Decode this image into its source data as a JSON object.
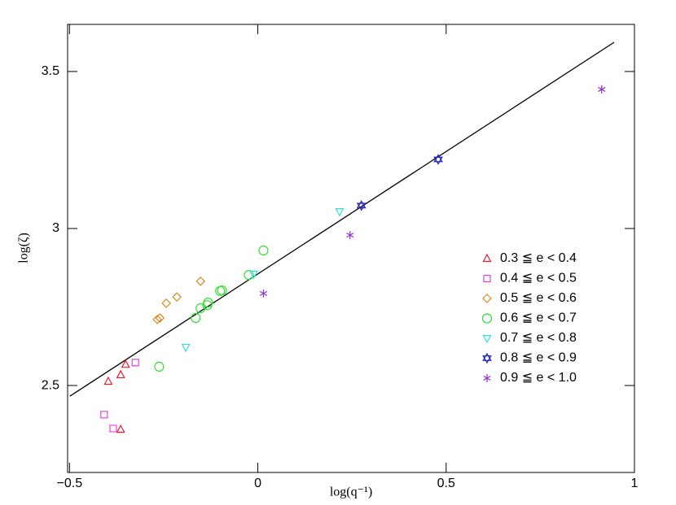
{
  "chart_data": {
    "type": "scatter",
    "x_label": "log(q⁻¹)",
    "y_label": "log(ζ)",
    "xlim": [
      -0.505,
      1.0
    ],
    "ylim": [
      2.223,
      3.65
    ],
    "xticks": [
      {
        "value": -0.5,
        "label": "−0.5"
      },
      0,
      0.5,
      1
    ],
    "yticks": [
      2.5,
      3,
      3.5
    ],
    "legend": "right",
    "line": {
      "x": [
        -0.499,
        0.946
      ],
      "y": [
        2.466,
        3.593
      ],
      "color": "#000000"
    },
    "series": [
      {
        "name": "0.3 ≦ e < 0.4",
        "color": "#e8202a",
        "marker": "triangle",
        "x": [
          -0.397,
          -0.364,
          -0.351,
          -0.364
        ],
        "values": [
          2.513,
          2.534,
          2.567,
          2.36
        ]
      },
      {
        "name": "0.4 ≦ e < 0.5",
        "color": "#e040e0",
        "marker": "square",
        "x": [
          -0.408,
          -0.384,
          -0.325
        ],
        "values": [
          2.407,
          2.363,
          2.573
        ]
      },
      {
        "name": "0.5 ≦ e < 0.6",
        "color": "#d88a20",
        "marker": "diamond",
        "x": [
          -0.267,
          -0.26,
          -0.243,
          -0.215,
          -0.152
        ],
        "values": [
          2.71,
          2.715,
          2.762,
          2.782,
          2.832
        ]
      },
      {
        "name": "0.6 ≦ e < 0.7",
        "color": "#30e030",
        "marker": "circle",
        "x": [
          -0.262,
          -0.165,
          -0.152,
          -0.134,
          -0.132,
          -0.1,
          -0.095,
          -0.024,
          0.015
        ],
        "values": [
          2.56,
          2.715,
          2.746,
          2.756,
          2.764,
          2.801,
          2.803,
          2.852,
          2.93
        ]
      },
      {
        "name": "0.7 ≦ e < 0.8",
        "color": "#30e0e0",
        "marker": "triangle-down",
        "x": [
          -0.191,
          -0.011,
          0.217
        ],
        "values": [
          2.622,
          2.855,
          3.054
        ]
      },
      {
        "name": "0.8 ≦ e < 0.9",
        "color": "#2020c0",
        "marker": "star",
        "x": [
          0.275,
          0.479
        ],
        "values": [
          3.073,
          3.22
        ]
      },
      {
        "name": "0.9 ≦ e < 1.0",
        "color": "#9030d0",
        "marker": "asterisk",
        "x": [
          0.015,
          0.245,
          0.913
        ],
        "values": [
          2.793,
          2.979,
          3.443
        ]
      }
    ]
  }
}
